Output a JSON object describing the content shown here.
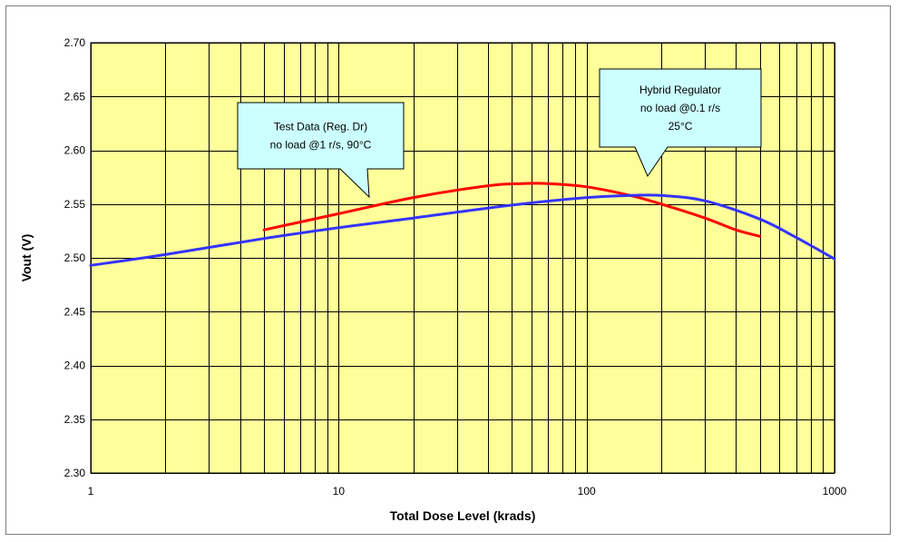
{
  "chart_data": {
    "type": "line",
    "title": "",
    "xlabel": "Total Dose Level (krads)",
    "ylabel": "Vout (V)",
    "xscale": "log",
    "xlim": [
      1,
      1000
    ],
    "ylim": [
      2.3,
      2.7
    ],
    "x_ticks": [
      "1",
      "10",
      "100",
      "1000"
    ],
    "y_ticks": [
      "2.30",
      "2.35",
      "2.40",
      "2.45",
      "2.50",
      "2.55",
      "2.60",
      "2.65",
      "2.70"
    ],
    "grid": true,
    "legend": "none",
    "colors": {
      "plot_bg": "#ffff99",
      "grid": "#000000",
      "red_series": "#ff0000",
      "blue_series": "#3333ff",
      "callout_bg": "#ccffff"
    },
    "series": [
      {
        "color": "#ff0000",
        "points": [
          [
            5,
            2.526
          ],
          [
            10,
            2.541
          ],
          [
            20,
            2.556
          ],
          [
            40,
            2.567
          ],
          [
            55,
            2.569
          ],
          [
            70,
            2.569
          ],
          [
            100,
            2.566
          ],
          [
            150,
            2.558
          ],
          [
            200,
            2.55
          ],
          [
            300,
            2.537
          ],
          [
            400,
            2.526
          ],
          [
            500,
            2.52
          ]
        ]
      },
      {
        "color": "#3333ff",
        "points": [
          [
            1,
            2.493
          ],
          [
            2,
            2.503
          ],
          [
            5,
            2.518
          ],
          [
            10,
            2.528
          ],
          [
            20,
            2.537
          ],
          [
            50,
            2.549
          ],
          [
            100,
            2.556
          ],
          [
            150,
            2.558
          ],
          [
            200,
            2.558
          ],
          [
            300,
            2.553
          ],
          [
            500,
            2.536
          ],
          [
            700,
            2.519
          ],
          [
            1000,
            2.499
          ]
        ]
      }
    ],
    "annotations": [
      {
        "lines": [
          "Test Data (Reg. Dr)",
          "no load @1 r/s, 90°C"
        ],
        "anchor": [
          13,
          2.553
        ]
      },
      {
        "lines": [
          "Hybrid Regulator",
          "no load @0.1 r/s",
          "25°C"
        ],
        "anchor": [
          170,
          2.558
        ]
      }
    ]
  }
}
